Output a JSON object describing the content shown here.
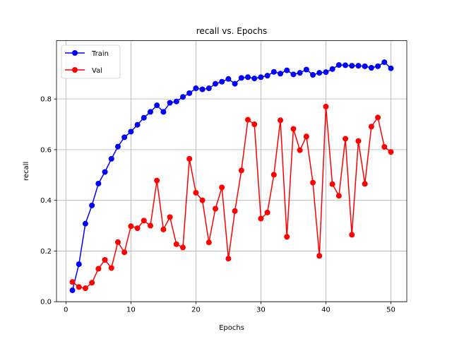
{
  "chart_data": {
    "type": "line",
    "title": "recall vs. Epochs",
    "xlabel": "Epochs",
    "ylabel": "recall",
    "xlim": [
      -1.45,
      52.45
    ],
    "ylim": [
      0.0,
      1.03
    ],
    "xticks": [
      "0",
      "10",
      "20",
      "30",
      "40",
      "50"
    ],
    "yticks": [
      "0.0",
      "0.2",
      "0.4",
      "0.6",
      "0.8"
    ],
    "grid": true,
    "legend_position": "top-left",
    "x": [
      1,
      2,
      3,
      4,
      5,
      6,
      7,
      8,
      9,
      10,
      11,
      12,
      13,
      14,
      15,
      16,
      17,
      18,
      19,
      20,
      21,
      22,
      23,
      24,
      25,
      26,
      27,
      28,
      29,
      30,
      31,
      32,
      33,
      34,
      35,
      36,
      37,
      38,
      39,
      40,
      41,
      42,
      43,
      44,
      45,
      46,
      47,
      48,
      49,
      50
    ],
    "series": [
      {
        "name": "Train",
        "color": "#0000ff",
        "values": [
          0.045,
          0.148,
          0.308,
          0.38,
          0.466,
          0.512,
          0.564,
          0.612,
          0.649,
          0.671,
          0.698,
          0.726,
          0.749,
          0.775,
          0.749,
          0.785,
          0.79,
          0.808,
          0.823,
          0.842,
          0.838,
          0.842,
          0.86,
          0.868,
          0.879,
          0.86,
          0.883,
          0.886,
          0.881,
          0.886,
          0.892,
          0.907,
          0.9,
          0.913,
          0.897,
          0.903,
          0.916,
          0.895,
          0.903,
          0.906,
          0.918,
          0.934,
          0.933,
          0.931,
          0.931,
          0.929,
          0.923,
          0.929,
          0.945,
          0.921
        ]
      },
      {
        "name": "Val",
        "color": "#ff0000",
        "values": [
          0.078,
          0.058,
          0.053,
          0.075,
          0.13,
          0.165,
          0.133,
          0.235,
          0.195,
          0.298,
          0.29,
          0.32,
          0.3,
          0.478,
          0.285,
          0.334,
          0.227,
          0.214,
          0.564,
          0.43,
          0.4,
          0.234,
          0.367,
          0.451,
          0.17,
          0.358,
          0.518,
          0.718,
          0.7,
          0.328,
          0.352,
          0.501,
          0.716,
          0.256,
          0.682,
          0.598,
          0.652,
          0.47,
          0.181,
          0.77,
          0.464,
          0.418,
          0.643,
          0.264,
          0.634,
          0.465,
          0.691,
          0.727,
          0.611,
          0.591
        ]
      }
    ]
  }
}
